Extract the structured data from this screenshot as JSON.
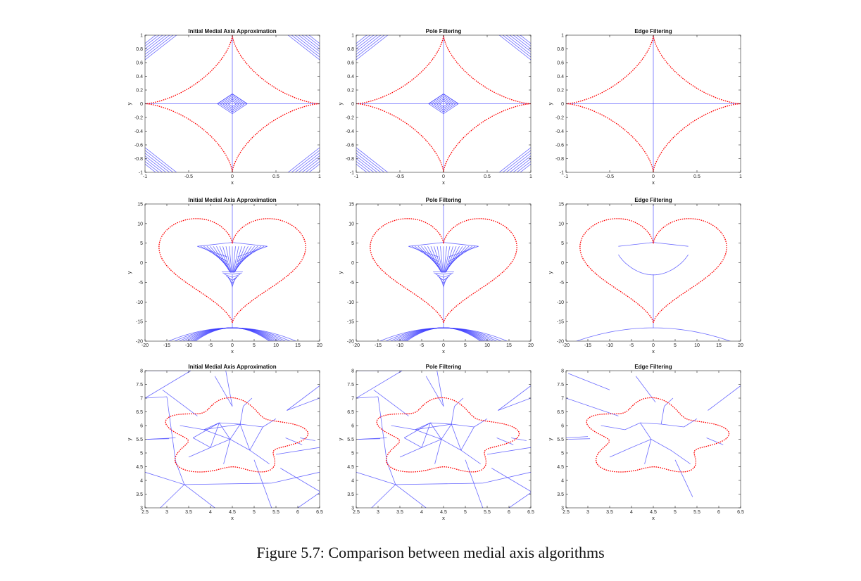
{
  "figure": {
    "caption": "Figure 5.7: Comparison between medial axis algorithms"
  },
  "chart_data": [
    {
      "type": "line",
      "shape": "astroid",
      "title": "Initial Medial Axis Approximation",
      "xlabel": "x",
      "ylabel": "y",
      "xlim": [
        -1,
        1
      ],
      "ylim": [
        -1,
        1
      ],
      "xticks": [
        "-1",
        "-0.5",
        "0",
        "0.5",
        "1"
      ],
      "yticks": [
        "-1",
        "-0.8",
        "-0.6",
        "-0.4",
        "-0.2",
        "0",
        "0.2",
        "0.4",
        "0.6",
        "0.8",
        "1"
      ],
      "variant": "initial",
      "colors": {
        "boundary": "#ff0000",
        "medial_axis": "#3a3aff"
      }
    },
    {
      "type": "line",
      "shape": "astroid",
      "title": "Pole Filtering",
      "xlabel": "x",
      "ylabel": "y",
      "xlim": [
        -1,
        1
      ],
      "ylim": [
        -1,
        1
      ],
      "xticks": [
        "-1",
        "-0.5",
        "0",
        "0.5",
        "1"
      ],
      "yticks": [
        "-1",
        "-0.8",
        "-0.6",
        "-0.4",
        "-0.2",
        "0",
        "0.2",
        "0.4",
        "0.6",
        "0.8",
        "1"
      ],
      "variant": "pole",
      "colors": {
        "boundary": "#ff0000",
        "medial_axis": "#3a3aff"
      }
    },
    {
      "type": "line",
      "shape": "astroid",
      "title": "Edge Filtering",
      "xlabel": "x",
      "ylabel": "y",
      "xlim": [
        -1,
        1
      ],
      "ylim": [
        -1,
        1
      ],
      "xticks": [
        "-1",
        "-0.5",
        "0",
        "0.5",
        "1"
      ],
      "yticks": [
        "-1",
        "-0.8",
        "-0.6",
        "-0.4",
        "-0.2",
        "0",
        "0.2",
        "0.4",
        "0.6",
        "0.8",
        "1"
      ],
      "variant": "edge",
      "colors": {
        "boundary": "#ff0000",
        "medial_axis": "#3a3aff"
      }
    },
    {
      "type": "line",
      "shape": "heart",
      "title": "Initial Medial Axis Approximation",
      "xlabel": "x",
      "ylabel": "y",
      "xlim": [
        -20,
        20
      ],
      "ylim": [
        -20,
        15
      ],
      "xticks": [
        "-20",
        "-15",
        "-10",
        "-5",
        "0",
        "5",
        "10",
        "15",
        "20"
      ],
      "yticks": [
        "-20",
        "-15",
        "-10",
        "-5",
        "0",
        "5",
        "10",
        "15"
      ],
      "variant": "initial",
      "colors": {
        "boundary": "#ff0000",
        "medial_axis": "#3a3aff"
      }
    },
    {
      "type": "line",
      "shape": "heart",
      "title": "Pole Filtering",
      "xlabel": "x",
      "ylabel": "y",
      "xlim": [
        -20,
        20
      ],
      "ylim": [
        -20,
        15
      ],
      "xticks": [
        "-20",
        "-15",
        "-10",
        "-5",
        "0",
        "5",
        "10",
        "15",
        "20"
      ],
      "yticks": [
        "-20",
        "-15",
        "-10",
        "-5",
        "0",
        "5",
        "10",
        "15"
      ],
      "variant": "pole",
      "colors": {
        "boundary": "#ff0000",
        "medial_axis": "#3a3aff"
      }
    },
    {
      "type": "line",
      "shape": "heart",
      "title": "Edge Filtering",
      "xlabel": "x",
      "ylabel": "y",
      "xlim": [
        -20,
        20
      ],
      "ylim": [
        -20,
        15
      ],
      "xticks": [
        "-20",
        "-15",
        "-10",
        "-5",
        "0",
        "5",
        "10",
        "15",
        "20"
      ],
      "yticks": [
        "-20",
        "-15",
        "-10",
        "-5",
        "0",
        "5",
        "10",
        "15"
      ],
      "variant": "edge",
      "colors": {
        "boundary": "#ff0000",
        "medial_axis": "#3a3aff"
      }
    },
    {
      "type": "line",
      "shape": "blob",
      "title": "Initial Medial Axis Approximation",
      "xlabel": "x",
      "ylabel": "y",
      "xlim": [
        2.5,
        6.5
      ],
      "ylim": [
        3,
        8
      ],
      "xticks": [
        "2.5",
        "3",
        "3.5",
        "4",
        "4.5",
        "5",
        "5.5",
        "6",
        "6.5"
      ],
      "yticks": [
        "3",
        "3.5",
        "4",
        "4.5",
        "5",
        "5.5",
        "6",
        "6.5",
        "7",
        "7.5",
        "8"
      ],
      "variant": "initial",
      "colors": {
        "boundary": "#ff0000",
        "medial_axis": "#3a3aff"
      }
    },
    {
      "type": "line",
      "shape": "blob",
      "title": "Pole Filtering",
      "xlabel": "x",
      "ylabel": "y",
      "xlim": [
        2.5,
        6.5
      ],
      "ylim": [
        3,
        8
      ],
      "xticks": [
        "2.5",
        "3",
        "3.5",
        "4",
        "4.5",
        "5",
        "5.5",
        "6",
        "6.5"
      ],
      "yticks": [
        "3",
        "3.5",
        "4",
        "4.5",
        "5",
        "5.5",
        "6",
        "6.5",
        "7",
        "7.5",
        "8"
      ],
      "variant": "pole",
      "colors": {
        "boundary": "#ff0000",
        "medial_axis": "#3a3aff"
      }
    },
    {
      "type": "line",
      "shape": "blob",
      "title": "Edge Filtering",
      "xlabel": "x",
      "ylabel": "y",
      "xlim": [
        2.5,
        6.5
      ],
      "ylim": [
        3,
        8
      ],
      "xticks": [
        "2.5",
        "3",
        "3.5",
        "4",
        "4.5",
        "5",
        "5.5",
        "6",
        "6.5"
      ],
      "yticks": [
        "3",
        "3.5",
        "4",
        "4.5",
        "5",
        "5.5",
        "6",
        "6.5",
        "7",
        "7.5",
        "8"
      ],
      "variant": "edge",
      "colors": {
        "boundary": "#ff0000",
        "medial_axis": "#3a3aff"
      }
    }
  ]
}
